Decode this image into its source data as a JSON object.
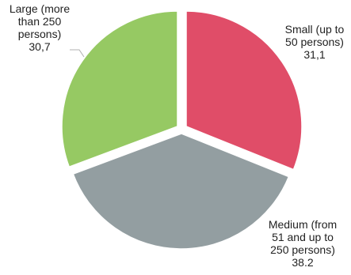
{
  "chart_data": {
    "type": "pie",
    "start_position": "12 o'clock, clockwise",
    "exploded": true,
    "slices": [
      {
        "name": "Small (up to 50 persons)",
        "value": 31.1,
        "color": "#e04d68",
        "label_lines": [
          "Small (up to",
          "50 persons)",
          "31,1"
        ]
      },
      {
        "name": "Medium (from 51 and up to 250 persons)",
        "value": 38.2,
        "color": "#939ea1",
        "label_lines": [
          "Medium (from",
          "51 and up to",
          "250 persons)",
          "38.2"
        ]
      },
      {
        "name": "Large (more than 250 persons)",
        "value": 30.7,
        "color": "#96c963",
        "label_lines": [
          "Large (more",
          "than 250",
          "persons)",
          "30,7"
        ]
      }
    ]
  }
}
